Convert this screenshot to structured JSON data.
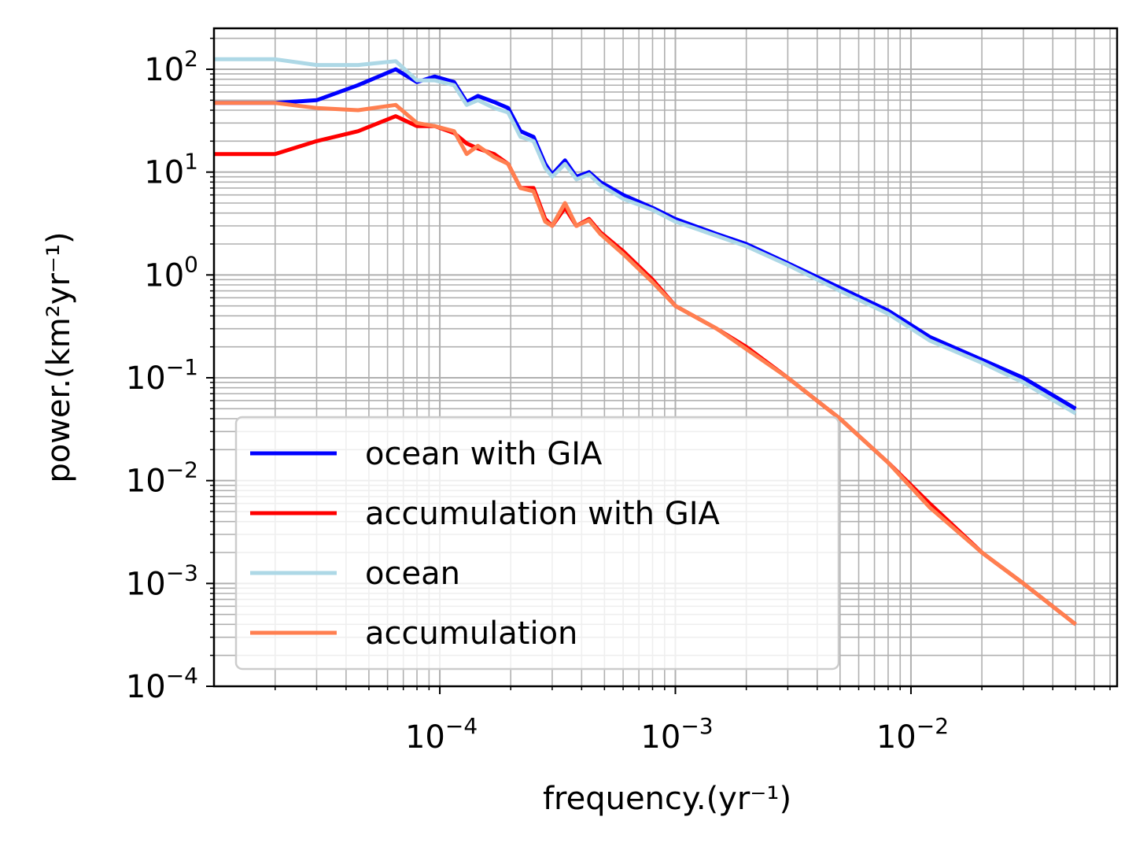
{
  "chart_data": {
    "type": "line",
    "xlabel": "frequency.(yr⁻¹)",
    "ylabel": "power.(km²yr⁻¹)",
    "xscale": "log",
    "yscale": "log",
    "xlim": [
      1.1e-05,
      0.075
    ],
    "ylim": [
      0.0001,
      250
    ],
    "x_ticks": [
      {
        "value": 0.0001,
        "base": "10",
        "exp": "−4"
      },
      {
        "value": 0.001,
        "base": "10",
        "exp": "−3"
      },
      {
        "value": 0.01,
        "base": "10",
        "exp": "−2"
      }
    ],
    "y_ticks": [
      {
        "value": 100,
        "base": "10",
        "exp": "2"
      },
      {
        "value": 10,
        "base": "10",
        "exp": "1"
      },
      {
        "value": 1,
        "base": "10",
        "exp": "0"
      },
      {
        "value": 0.1,
        "base": "10",
        "exp": "−1"
      },
      {
        "value": 0.01,
        "base": "10",
        "exp": "−2"
      },
      {
        "value": 0.001,
        "base": "10",
        "exp": "−3"
      },
      {
        "value": 0.0001,
        "base": "10",
        "exp": "−4"
      }
    ],
    "grid": true,
    "legend_position": "lower-left",
    "series": [
      {
        "name": "ocean with GIA",
        "color": "#0000ff",
        "x": [
          1.1e-05,
          2e-05,
          3e-05,
          4.5e-05,
          6.5e-05,
          8e-05,
          9.5e-05,
          0.000115,
          0.00013,
          0.000145,
          0.00017,
          0.000195,
          0.00022,
          0.00025,
          0.00028,
          0.0003,
          0.00034,
          0.00038,
          0.00043,
          0.00048,
          0.0006,
          0.0008,
          0.001,
          0.0015,
          0.002,
          0.003,
          0.005,
          0.008,
          0.012,
          0.02,
          0.03,
          0.05
        ],
        "y": [
          47,
          47,
          50,
          70,
          100,
          75,
          85,
          75,
          48,
          55,
          48,
          42,
          25,
          22,
          12,
          9.5,
          13,
          9,
          10,
          8,
          6,
          4.5,
          3.5,
          2.5,
          2.0,
          1.3,
          0.75,
          0.45,
          0.25,
          0.15,
          0.1,
          0.05
        ]
      },
      {
        "name": "accumulation with GIA",
        "color": "#ff0000",
        "x": [
          1.1e-05,
          2e-05,
          3e-05,
          4.5e-05,
          6.5e-05,
          8e-05,
          9.5e-05,
          0.000115,
          0.00013,
          0.000145,
          0.00017,
          0.000195,
          0.00022,
          0.00025,
          0.00028,
          0.0003,
          0.00034,
          0.00038,
          0.00043,
          0.00048,
          0.0006,
          0.0008,
          0.001,
          0.0015,
          0.002,
          0.003,
          0.005,
          0.008,
          0.012,
          0.02,
          0.03,
          0.05
        ],
        "y": [
          15,
          15,
          20,
          25,
          35,
          28,
          28,
          24,
          19,
          17,
          15,
          12,
          7,
          7,
          3.5,
          3,
          4.5,
          3,
          3.5,
          2.6,
          1.7,
          0.9,
          0.5,
          0.3,
          0.2,
          0.1,
          0.04,
          0.015,
          0.006,
          0.002,
          0.001,
          0.0004
        ]
      },
      {
        "name": "ocean",
        "color": "#add8e6",
        "x": [
          1.1e-05,
          2e-05,
          3e-05,
          4.5e-05,
          6.5e-05,
          8e-05,
          9.5e-05,
          0.000115,
          0.00013,
          0.000145,
          0.00017,
          0.000195,
          0.00022,
          0.00025,
          0.00028,
          0.0003,
          0.00034,
          0.00038,
          0.00043,
          0.00048,
          0.0006,
          0.0008,
          0.001,
          0.0015,
          0.002,
          0.003,
          0.005,
          0.008,
          0.012,
          0.02,
          0.03,
          0.05
        ],
        "y": [
          125,
          125,
          110,
          110,
          120,
          78,
          78,
          70,
          45,
          50,
          42,
          38,
          22,
          20,
          11,
          9,
          12,
          8.5,
          9.5,
          7.5,
          5.5,
          4.3,
          3.3,
          2.4,
          1.9,
          1.25,
          0.7,
          0.42,
          0.23,
          0.14,
          0.09,
          0.045
        ]
      },
      {
        "name": "accumulation",
        "color": "#ff7f50",
        "x": [
          1.1e-05,
          2e-05,
          3e-05,
          4.5e-05,
          6.5e-05,
          8e-05,
          9.5e-05,
          0.000115,
          0.00013,
          0.000145,
          0.00017,
          0.000195,
          0.00022,
          0.00025,
          0.00028,
          0.0003,
          0.00034,
          0.00038,
          0.00043,
          0.00048,
          0.0006,
          0.0008,
          0.001,
          0.0015,
          0.002,
          0.003,
          0.005,
          0.008,
          0.012,
          0.02,
          0.03,
          0.05
        ],
        "y": [
          47,
          47,
          42,
          40,
          45,
          30,
          28,
          25,
          15,
          18,
          14,
          12,
          7,
          6.5,
          3.3,
          3,
          5,
          3,
          3.4,
          2.5,
          1.6,
          0.85,
          0.5,
          0.3,
          0.19,
          0.1,
          0.04,
          0.015,
          0.0055,
          0.002,
          0.001,
          0.0004
        ]
      }
    ]
  }
}
